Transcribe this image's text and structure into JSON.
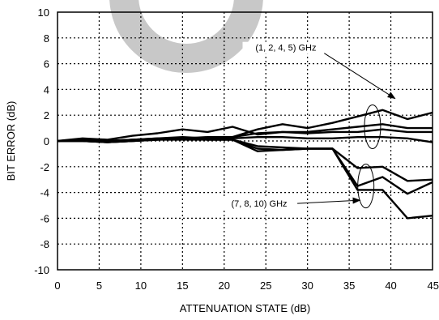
{
  "chart_data": {
    "type": "line",
    "title": "",
    "xlabel": "ATTENUATION STATE (dB)",
    "ylabel": "BIT ERROR (dB)",
    "xlim": [
      0,
      45
    ],
    "ylim": [
      -10,
      10
    ],
    "xticks": [
      0,
      5,
      10,
      15,
      20,
      25,
      30,
      35,
      40,
      45
    ],
    "yticks": [
      -10,
      -8,
      -6,
      -4,
      -2,
      0,
      2,
      4,
      6,
      8,
      10
    ],
    "xtick_labels": [
      "0",
      "5",
      "10",
      "15",
      "20",
      "25",
      "30",
      "35",
      "40",
      "45"
    ],
    "ytick_labels": [
      "-10",
      "-8",
      "-6",
      "-4",
      "-2",
      "0",
      "2",
      "4",
      "6",
      "8",
      "10"
    ],
    "grid": true,
    "grid_style": "dotted",
    "line_color": "#000000",
    "watermark_color": "#c8c8c8",
    "series": [
      {
        "x": [
          0,
          3,
          6,
          9,
          12,
          15,
          18,
          21,
          24,
          27,
          30,
          33,
          36,
          39,
          42,
          45
        ],
        "y": [
          0,
          0.2,
          0.1,
          0.4,
          0.6,
          0.9,
          0.7,
          1.1,
          0.5,
          0.7,
          0.6,
          0.7,
          0.7,
          0.9,
          0.7,
          0.7
        ]
      },
      {
        "x": [
          0,
          3,
          6,
          9,
          12,
          15,
          18,
          21,
          24,
          27,
          30,
          33,
          36,
          39,
          42,
          45
        ],
        "y": [
          0,
          0.1,
          0,
          0.1,
          0.2,
          0.3,
          0.2,
          0.3,
          0.9,
          1.3,
          1.0,
          1.4,
          1.9,
          2.4,
          1.7,
          2.2
        ]
      },
      {
        "x": [
          0,
          3,
          6,
          9,
          12,
          15,
          18,
          21,
          24,
          27,
          30,
          33,
          36,
          39,
          42,
          45
        ],
        "y": [
          0,
          0.1,
          0,
          0.1,
          0.2,
          0.2,
          0.3,
          0.3,
          0.6,
          0.7,
          0.7,
          0.9,
          1.1,
          1.3,
          1.0,
          1.0
        ]
      },
      {
        "x": [
          0,
          3,
          6,
          9,
          12,
          15,
          18,
          21,
          24,
          27,
          30,
          33,
          36,
          39,
          42,
          45
        ],
        "y": [
          0,
          0.1,
          0,
          0.1,
          0.1,
          0.1,
          0.1,
          0.2,
          0.3,
          0.3,
          0.2,
          0.2,
          0.3,
          0.3,
          0.2,
          -0.1
        ]
      },
      {
        "x": [
          0,
          3,
          6,
          9,
          12,
          15,
          18,
          21,
          24,
          27,
          30,
          33,
          36,
          39,
          42,
          45
        ],
        "y": [
          0,
          0,
          -0.1,
          0,
          0.1,
          0.2,
          0.1,
          0.1,
          -0.4,
          -0.5,
          -0.6,
          -0.6,
          -2.1,
          -2.0,
          -3.1,
          -3.0
        ]
      },
      {
        "x": [
          0,
          3,
          6,
          9,
          12,
          15,
          18,
          21,
          24,
          27,
          30,
          33,
          36,
          39,
          42,
          45
        ],
        "y": [
          0,
          0,
          -0.1,
          0,
          0.1,
          0.2,
          0.1,
          0.1,
          -0.6,
          -0.7,
          -0.6,
          -0.6,
          -3.5,
          -2.8,
          -4.1,
          -3.2
        ]
      },
      {
        "x": [
          0,
          3,
          6,
          9,
          12,
          15,
          18,
          21,
          24,
          27,
          30,
          33,
          36,
          39,
          42,
          45
        ],
        "y": [
          0,
          0,
          -0.1,
          0,
          0.1,
          0.2,
          0.1,
          0.1,
          -0.8,
          -0.7,
          -0.6,
          -0.6,
          -3.8,
          -3.8,
          -6.0,
          -5.8
        ]
      }
    ],
    "annotations": [
      {
        "text": "(1, 2, 4, 5) GHz",
        "x": 27.4,
        "y": 7.0,
        "arrow_to": [
          40.5,
          3.3
        ],
        "ellipse_center": [
          37.8,
          1.1
        ]
      },
      {
        "text": "(7, 8, 10) GHz",
        "x": 24.2,
        "y": -5.1,
        "arrow_to": [
          36.3,
          -4.6
        ],
        "ellipse_center": [
          37.0,
          -3.5
        ]
      }
    ]
  }
}
